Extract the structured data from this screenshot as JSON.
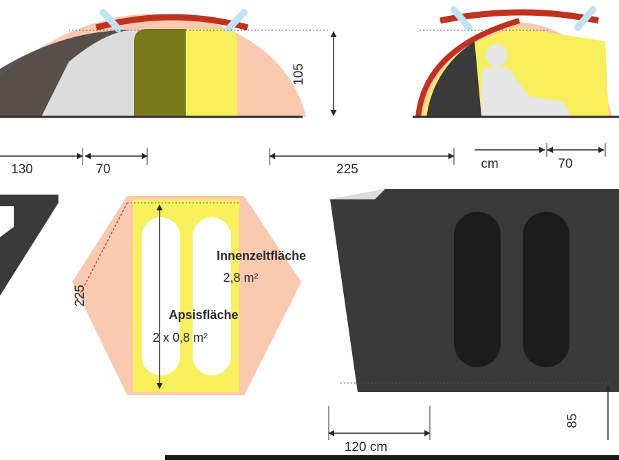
{
  "side_view": {
    "height": "105",
    "widths": [
      "130",
      "70",
      "225",
      "cm",
      "70"
    ]
  },
  "floor_plan": {
    "length": "225",
    "inner_area_label": "Innenzeltfläche",
    "inner_area_value": "2,8 m²",
    "apse_area_label": "Apsisfläche",
    "apse_area_value": "2 x 0,8 m²",
    "foot_width": "120 cm",
    "right_partial_dimension": "85"
  },
  "colors": {
    "fly": "#f9c9b0",
    "inner_tent": "#f7ef5c",
    "ground": "#3a3a3a",
    "edge": "#c0321e",
    "person": "#e6e6e6",
    "pole_tip": "#bfe3f3"
  }
}
